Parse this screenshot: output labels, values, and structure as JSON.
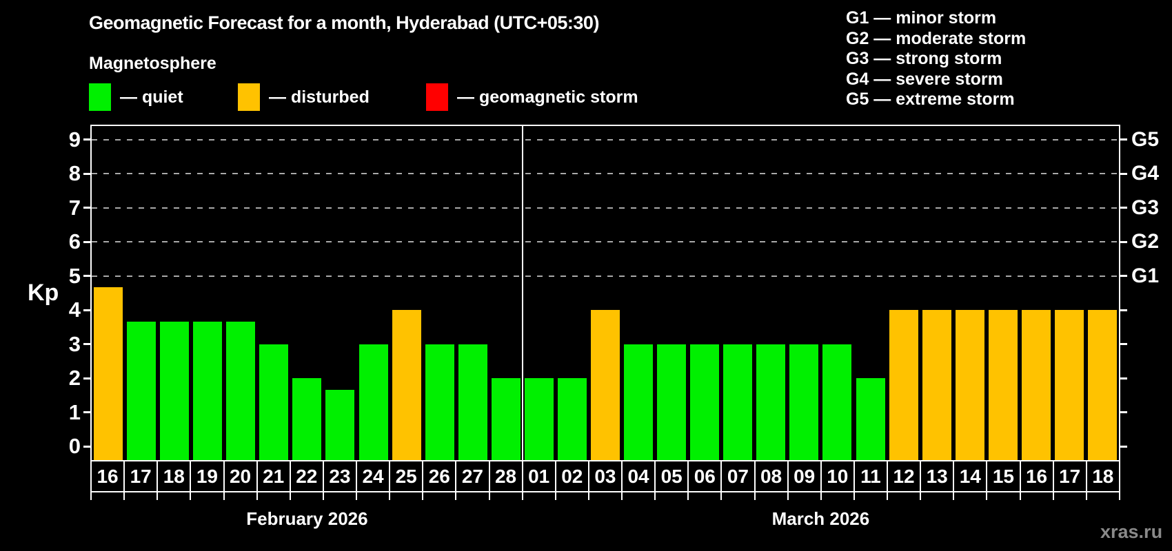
{
  "header": {
    "title": "Geomagnetic Forecast for a month, Hyderabad (UTC+05:30)",
    "subtitle": "Magnetosphere"
  },
  "legend": {
    "items": [
      {
        "key": "quiet",
        "label": "— quiet",
        "color": "#00f000"
      },
      {
        "key": "disturbed",
        "label": "— disturbed",
        "color": "#ffc200"
      },
      {
        "key": "storm",
        "label": "— geomagnetic storm",
        "color": "#ff0000"
      }
    ]
  },
  "g_legend": {
    "items": [
      {
        "text": "G1 — minor storm"
      },
      {
        "text": "G2 — moderate storm"
      },
      {
        "text": "G3 — strong storm"
      },
      {
        "text": "G4 — severe storm"
      },
      {
        "text": "G5 — extreme storm"
      }
    ]
  },
  "footer": {
    "watermark": "xras.ru"
  },
  "colors": {
    "background": "#000000",
    "text": "#ffffff",
    "grid": "#aaaaaa",
    "axis": "#ffffff",
    "watermark": "#8a8a8a"
  },
  "chart_data": {
    "type": "bar",
    "title": "Geomagnetic Forecast for a month, Hyderabad (UTC+05:30)",
    "ylabel": "Kp",
    "ylim": [
      0,
      9
    ],
    "yticks": [
      0,
      1,
      2,
      3,
      4,
      5,
      6,
      7,
      8,
      9
    ],
    "grid": "dashed horizontal gray lines at Kp 5 through 9 only",
    "legend_position": "top",
    "right_axis": [
      {
        "kp": 5,
        "label": "G1"
      },
      {
        "kp": 6,
        "label": "G2"
      },
      {
        "kp": 7,
        "label": "G3"
      },
      {
        "kp": 8,
        "label": "G4"
      },
      {
        "kp": 9,
        "label": "G5"
      }
    ],
    "months": [
      {
        "label": "February 2026",
        "days": [
          {
            "date": "16",
            "kp": 4.67,
            "status": "disturbed"
          },
          {
            "date": "17",
            "kp": 3.67,
            "status": "quiet"
          },
          {
            "date": "18",
            "kp": 3.67,
            "status": "quiet"
          },
          {
            "date": "19",
            "kp": 3.67,
            "status": "quiet"
          },
          {
            "date": "20",
            "kp": 3.67,
            "status": "quiet"
          },
          {
            "date": "21",
            "kp": 3.0,
            "status": "quiet"
          },
          {
            "date": "22",
            "kp": 2.0,
            "status": "quiet"
          },
          {
            "date": "23",
            "kp": 1.67,
            "status": "quiet"
          },
          {
            "date": "24",
            "kp": 3.0,
            "status": "quiet"
          },
          {
            "date": "25",
            "kp": 4.0,
            "status": "disturbed"
          },
          {
            "date": "26",
            "kp": 3.0,
            "status": "quiet"
          },
          {
            "date": "27",
            "kp": 3.0,
            "status": "quiet"
          },
          {
            "date": "28",
            "kp": 2.0,
            "status": "quiet"
          }
        ]
      },
      {
        "label": "March 2026",
        "days": [
          {
            "date": "01",
            "kp": 2.0,
            "status": "quiet"
          },
          {
            "date": "02",
            "kp": 2.0,
            "status": "quiet"
          },
          {
            "date": "03",
            "kp": 4.0,
            "status": "disturbed"
          },
          {
            "date": "04",
            "kp": 3.0,
            "status": "quiet"
          },
          {
            "date": "05",
            "kp": 3.0,
            "status": "quiet"
          },
          {
            "date": "06",
            "kp": 3.0,
            "status": "quiet"
          },
          {
            "date": "07",
            "kp": 3.0,
            "status": "quiet"
          },
          {
            "date": "08",
            "kp": 3.0,
            "status": "quiet"
          },
          {
            "date": "09",
            "kp": 3.0,
            "status": "quiet"
          },
          {
            "date": "10",
            "kp": 3.0,
            "status": "quiet"
          },
          {
            "date": "11",
            "kp": 2.0,
            "status": "quiet"
          },
          {
            "date": "12",
            "kp": 4.0,
            "status": "disturbed"
          },
          {
            "date": "13",
            "kp": 4.0,
            "status": "disturbed"
          },
          {
            "date": "14",
            "kp": 4.0,
            "status": "disturbed"
          },
          {
            "date": "15",
            "kp": 4.0,
            "status": "disturbed"
          },
          {
            "date": "16",
            "kp": 4.0,
            "status": "disturbed"
          },
          {
            "date": "17",
            "kp": 4.0,
            "status": "disturbed"
          },
          {
            "date": "18",
            "kp": 4.0,
            "status": "disturbed"
          }
        ]
      }
    ]
  }
}
